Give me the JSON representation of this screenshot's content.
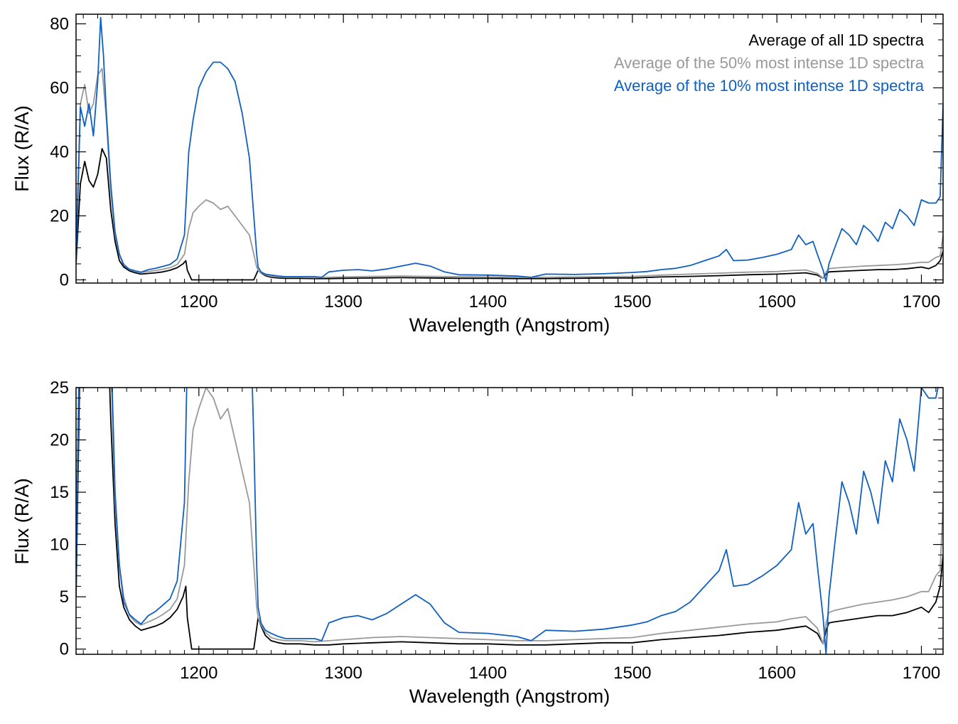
{
  "chart_data": [
    {
      "type": "line",
      "title": "",
      "xlabel": "Wavelength (Angstrom)",
      "ylabel": "Flux (R/A)",
      "xlim": [
        1115,
        1715
      ],
      "ylim": [
        -1,
        83
      ],
      "x_ticks": [
        1200,
        1300,
        1400,
        1500,
        1600,
        1700
      ],
      "y_ticks": [
        0,
        20,
        40,
        60,
        80
      ],
      "legend_position": "top-right",
      "grid": false,
      "legend": [
        {
          "name": "Average of all 1D spectra",
          "color": "#000000"
        },
        {
          "name": "Average of the 50% most intense 1D spectra",
          "color": "#999999"
        },
        {
          "name": "Average of the 10% most intense 1D spectra",
          "color": "#1060c0"
        }
      ]
    },
    {
      "type": "line",
      "title": "",
      "xlabel": "Wavelength (Angstrom)",
      "ylabel": "Flux (R/A)",
      "xlim": [
        1115,
        1715
      ],
      "ylim": [
        -0.5,
        25
      ],
      "x_ticks": [
        1200,
        1300,
        1400,
        1500,
        1600,
        1700
      ],
      "y_ticks": [
        0,
        5,
        10,
        15,
        20,
        25
      ],
      "grid": false
    }
  ],
  "series_data": [
    {
      "name": "Average of all 1D spectra",
      "color": "#000000",
      "x": [
        1115,
        1118,
        1121,
        1124,
        1127,
        1130,
        1133,
        1136,
        1139,
        1142,
        1145,
        1148,
        1152,
        1156,
        1160,
        1165,
        1170,
        1175,
        1180,
        1185,
        1189,
        1191,
        1192,
        1195,
        1200,
        1210,
        1220,
        1230,
        1238,
        1240,
        1241,
        1243,
        1246,
        1250,
        1255,
        1260,
        1270,
        1280,
        1290,
        1300,
        1320,
        1340,
        1360,
        1380,
        1400,
        1420,
        1440,
        1460,
        1480,
        1500,
        1520,
        1540,
        1560,
        1580,
        1600,
        1610,
        1620,
        1628,
        1632,
        1634,
        1636,
        1640,
        1650,
        1660,
        1670,
        1680,
        1690,
        1700,
        1705,
        1710,
        1713,
        1715
      ],
      "y": [
        5,
        30,
        37,
        31,
        29,
        33,
        41,
        38,
        22,
        12,
        6,
        4,
        2.8,
        2.2,
        1.8,
        2,
        2.2,
        2.5,
        3,
        3.8,
        5,
        6,
        3,
        0,
        0,
        0,
        0,
        0,
        0,
        2,
        3,
        2.2,
        1.3,
        0.8,
        0.6,
        0.5,
        0.5,
        0.4,
        0.4,
        0.5,
        0.6,
        0.7,
        0.6,
        0.5,
        0.5,
        0.4,
        0.4,
        0.5,
        0.6,
        0.6,
        0.9,
        1.1,
        1.3,
        1.6,
        1.8,
        2,
        2.2,
        1.5,
        0.5,
        1.8,
        2.5,
        2.6,
        2.8,
        3,
        3.2,
        3.2,
        3.5,
        4,
        3.5,
        4.5,
        6,
        9
      ]
    },
    {
      "name": "Average of the 50% most intense 1D spectra",
      "color": "#999999",
      "x": [
        1115,
        1118,
        1121,
        1124,
        1127,
        1130,
        1133,
        1136,
        1139,
        1142,
        1145,
        1148,
        1152,
        1156,
        1160,
        1165,
        1170,
        1175,
        1180,
        1185,
        1190,
        1193,
        1196,
        1200,
        1205,
        1210,
        1215,
        1220,
        1225,
        1230,
        1235,
        1238,
        1240,
        1241,
        1243,
        1246,
        1250,
        1255,
        1260,
        1270,
        1280,
        1290,
        1300,
        1320,
        1340,
        1360,
        1380,
        1400,
        1420,
        1440,
        1460,
        1480,
        1500,
        1520,
        1540,
        1560,
        1580,
        1600,
        1610,
        1620,
        1628,
        1632,
        1634,
        1636,
        1640,
        1650,
        1660,
        1670,
        1680,
        1690,
        1700,
        1705,
        1710,
        1713,
        1715
      ],
      "y": [
        10,
        55,
        61,
        52,
        55,
        64,
        66,
        50,
        28,
        14,
        8,
        5,
        3.2,
        2.6,
        2.3,
        2.6,
        2.9,
        3.3,
        3.8,
        4.8,
        8,
        16,
        21,
        23,
        25,
        24,
        22,
        23,
        20,
        17,
        14,
        8,
        4,
        3,
        2.3,
        1.6,
        1.1,
        0.9,
        0.8,
        0.8,
        0.7,
        0.8,
        0.9,
        1.1,
        1.2,
        1.1,
        1.0,
        0.9,
        0.8,
        0.8,
        0.9,
        1.0,
        1.1,
        1.5,
        1.8,
        2.1,
        2.4,
        2.6,
        2.9,
        3.1,
        2,
        0.5,
        2.5,
        3.5,
        3.7,
        4,
        4.3,
        4.5,
        4.7,
        5,
        5.5,
        5.5,
        7,
        7.5,
        14
      ]
    },
    {
      "name": "Average of the 10% most intense 1D spectra",
      "color": "#1060c0",
      "x": [
        1115,
        1118,
        1121,
        1124,
        1127,
        1130,
        1132,
        1134,
        1136,
        1139,
        1142,
        1145,
        1148,
        1152,
        1156,
        1160,
        1165,
        1170,
        1175,
        1180,
        1185,
        1190,
        1193,
        1196,
        1200,
        1205,
        1210,
        1215,
        1220,
        1225,
        1230,
        1235,
        1238,
        1240,
        1241,
        1243,
        1246,
        1250,
        1255,
        1260,
        1270,
        1280,
        1285,
        1290,
        1300,
        1310,
        1320,
        1330,
        1340,
        1350,
        1360,
        1370,
        1380,
        1400,
        1420,
        1430,
        1440,
        1460,
        1480,
        1500,
        1510,
        1520,
        1530,
        1540,
        1550,
        1560,
        1565,
        1570,
        1580,
        1590,
        1600,
        1610,
        1615,
        1620,
        1625,
        1628,
        1632,
        1634,
        1636,
        1640,
        1645,
        1650,
        1655,
        1660,
        1665,
        1670,
        1675,
        1680,
        1685,
        1690,
        1695,
        1700,
        1705,
        1710,
        1713,
        1715
      ],
      "y": [
        5,
        54,
        48,
        55,
        45,
        62,
        82,
        70,
        52,
        30,
        15,
        8,
        4.5,
        3.3,
        2.8,
        2.4,
        3.2,
        3.6,
        4.2,
        4.8,
        6.5,
        14,
        40,
        50,
        60,
        65,
        68,
        68,
        66,
        62,
        52,
        38,
        20,
        8,
        4,
        2.5,
        1.8,
        1.5,
        1.2,
        1.0,
        1.0,
        1.0,
        0.8,
        2.5,
        3,
        3.2,
        2.8,
        3.4,
        4.3,
        5.2,
        4.3,
        2.5,
        1.6,
        1.5,
        1.2,
        0.8,
        1.8,
        1.7,
        1.9,
        2.3,
        2.6,
        3.2,
        3.6,
        4.5,
        6,
        7.5,
        9.5,
        6,
        6.2,
        7,
        8,
        9.5,
        14,
        11,
        12,
        8,
        3,
        -0.5,
        5,
        10,
        16,
        14,
        11,
        17,
        15,
        12,
        18,
        16,
        22,
        20,
        17,
        25,
        24,
        24,
        26,
        55
      ]
    }
  ]
}
